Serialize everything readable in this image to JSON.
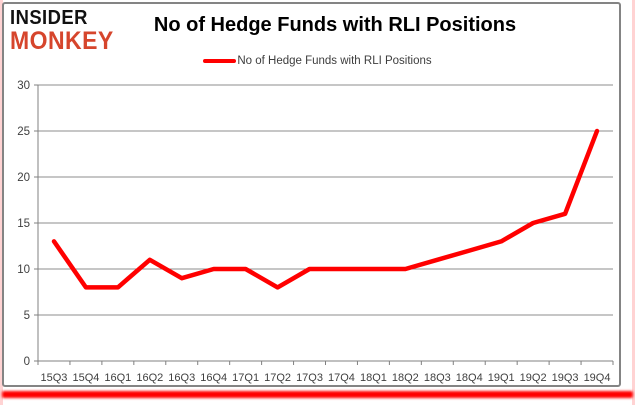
{
  "logo": {
    "line1": "INSIDER",
    "line2": "MONKEY",
    "line1_color": "#111111",
    "line2_color": "#d6452c"
  },
  "header": {
    "title": "No of Hedge Funds with RLI Positions"
  },
  "legend": {
    "label": "No of Hedge Funds with RLI Positions",
    "marker_color": "#ff0000"
  },
  "chart_data": {
    "type": "line",
    "title": "No of Hedge Funds with RLI Positions",
    "categories": [
      "15Q3",
      "15Q4",
      "16Q1",
      "16Q2",
      "16Q3",
      "16Q4",
      "17Q1",
      "17Q2",
      "17Q3",
      "17Q4",
      "18Q1",
      "18Q2",
      "18Q3",
      "18Q4",
      "19Q1",
      "19Q2",
      "19Q3",
      "19Q4"
    ],
    "series": [
      {
        "name": "No of Hedge Funds with RLI Positions",
        "values": [
          13,
          8,
          8,
          11,
          9,
          10,
          10,
          8,
          10,
          10,
          10,
          10,
          11,
          12,
          13,
          15,
          16,
          25
        ]
      }
    ],
    "xlabel": "",
    "ylabel": "",
    "ylim": [
      0,
      30
    ],
    "yticks": [
      0,
      5,
      10,
      15,
      20,
      25,
      30
    ],
    "grid": true,
    "legend_position": "top-center",
    "line_color": "#ff0000",
    "grid_color": "#8c8c8c",
    "axis_color": "#808080",
    "tick_label_color": "#3f3f3f"
  }
}
